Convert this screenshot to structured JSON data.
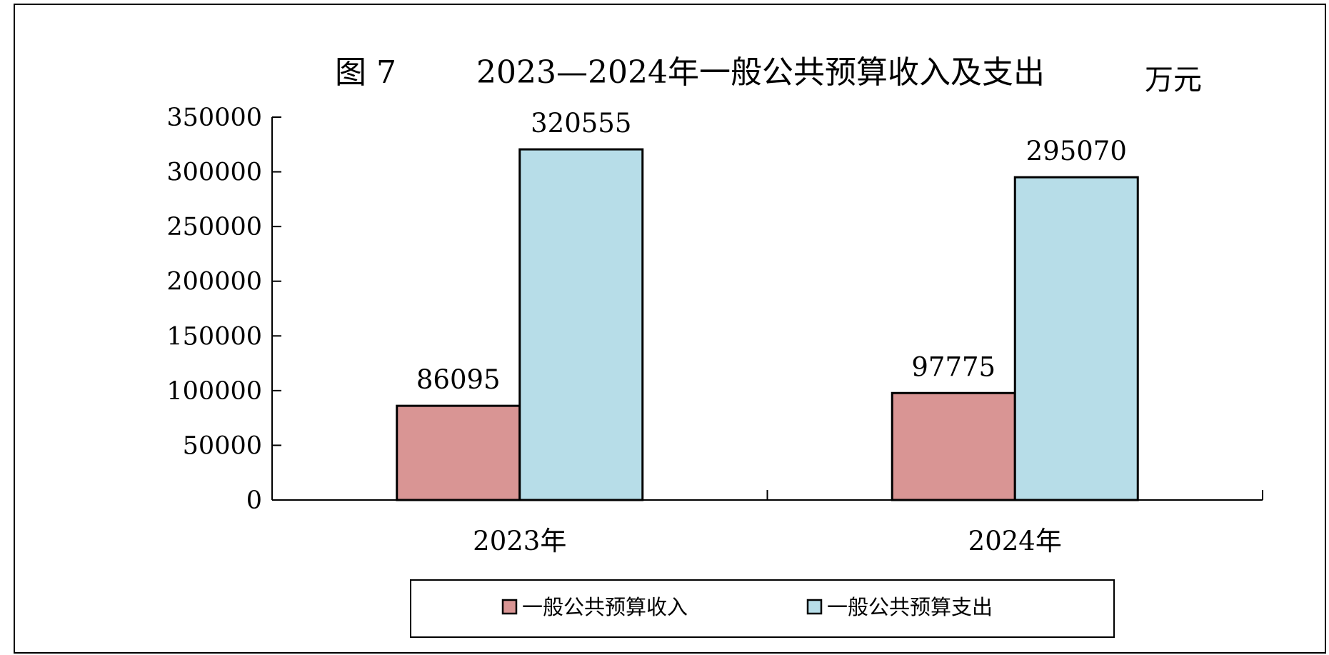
{
  "chart_data": {
    "type": "bar",
    "figure_label": "图 7",
    "title": "2023—2024年一般公共预算收入及支出",
    "unit": "万元",
    "categories": [
      "2023年",
      "2024年"
    ],
    "series": [
      {
        "name": "一般公共预算收入",
        "values": [
          86095,
          97775
        ],
        "color": "#D99594"
      },
      {
        "name": "一般公共预算支出",
        "values": [
          320555,
          295070
        ],
        "color": "#B7DDE8"
      }
    ],
    "ylim": [
      0,
      350000
    ],
    "yticks": [
      0,
      50000,
      100000,
      150000,
      200000,
      250000,
      300000,
      350000
    ],
    "grid": false,
    "legend_position": "bottom"
  }
}
